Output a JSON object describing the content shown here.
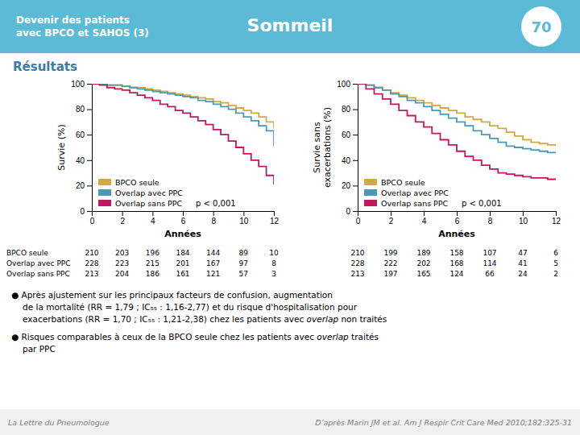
{
  "title": "Sommeil",
  "subtitle": "Devenir des patients\navec BPCO et SAHOS (3)",
  "slide_number": "70",
  "section_title": "Résultats",
  "chart_data": [
    {
      "type": "line",
      "line_style": "step",
      "xlabel": "Années",
      "ylabel": "Survie (%)",
      "xlim": [
        0,
        12
      ],
      "ylim": [
        0,
        100
      ],
      "xticks": [
        0,
        2,
        4,
        6,
        8,
        10,
        12
      ],
      "yticks": [
        0,
        20,
        40,
        60,
        80,
        100
      ],
      "grid": false,
      "legend": "lower left",
      "x": [
        0,
        0.5,
        1,
        1.5,
        2,
        2.5,
        3,
        3.5,
        4,
        4.5,
        5,
        5.5,
        6,
        6.5,
        7,
        7.5,
        8,
        8.5,
        9,
        9.5,
        10,
        10.5,
        11,
        11.5,
        12
      ],
      "series": [
        {
          "name": "BPCO seule",
          "color": "#d4a843",
          "values": [
            100,
            100,
            99,
            99,
            98,
            97,
            97,
            96,
            95,
            94,
            93,
            92,
            91,
            90,
            89,
            88,
            86,
            85,
            83,
            81,
            79,
            77,
            74,
            70,
            65
          ]
        },
        {
          "name": "Overlap avec PPC",
          "color": "#4a9ab5",
          "values": [
            100,
            100,
            99,
            99,
            98,
            97,
            96,
            95,
            94,
            93,
            92,
            91,
            90,
            89,
            87,
            86,
            84,
            82,
            80,
            77,
            74,
            71,
            67,
            63,
            51
          ]
        },
        {
          "name": "Overlap sans PPC",
          "color": "#c0195e",
          "values": [
            100,
            99,
            97,
            96,
            95,
            93,
            91,
            89,
            87,
            84,
            82,
            79,
            77,
            74,
            71,
            68,
            64,
            60,
            55,
            50,
            45,
            40,
            35,
            28,
            21
          ]
        }
      ],
      "annotations": [
        "p < 0,001"
      ],
      "table": {
        "row_labels": [
          "BPCO seule",
          "Overlap avec PPC",
          "Overlap sans PPC"
        ],
        "rows": [
          [
            210,
            203,
            196,
            184,
            144,
            89,
            10
          ],
          [
            228,
            223,
            215,
            201,
            167,
            97,
            8
          ],
          [
            213,
            204,
            186,
            161,
            121,
            57,
            3
          ]
        ]
      }
    },
    {
      "type": "line",
      "line_style": "step",
      "xlabel": "Années",
      "ylabel": "Survie sans\nexacerbations (%)",
      "xlim": [
        0,
        12
      ],
      "ylim": [
        0,
        100
      ],
      "xticks": [
        0,
        2,
        4,
        6,
        8,
        10,
        12
      ],
      "yticks": [
        0,
        20,
        40,
        60,
        80,
        100
      ],
      "grid": false,
      "legend": "lower left",
      "x": [
        0,
        0.5,
        1,
        1.5,
        2,
        2.5,
        3,
        3.5,
        4,
        4.5,
        5,
        5.5,
        6,
        6.5,
        7,
        7.5,
        8,
        8.5,
        9,
        9.5,
        10,
        10.5,
        11,
        11.5,
        12
      ],
      "series": [
        {
          "name": "BPCO seule",
          "color": "#d4a843",
          "values": [
            100,
            99,
            97,
            95,
            93,
            91,
            89,
            87,
            85,
            83,
            81,
            79,
            77,
            74,
            72,
            70,
            67,
            65,
            62,
            59,
            56,
            54,
            53,
            52,
            51
          ]
        },
        {
          "name": "Overlap avec PPC",
          "color": "#4a9ab5",
          "values": [
            100,
            99,
            97,
            95,
            92,
            90,
            87,
            85,
            82,
            79,
            76,
            73,
            70,
            67,
            63,
            60,
            57,
            54,
            51,
            50,
            49,
            48,
            47,
            46,
            46
          ]
        },
        {
          "name": "Overlap sans PPC",
          "color": "#c0195e",
          "values": [
            100,
            96,
            92,
            88,
            84,
            79,
            75,
            70,
            66,
            61,
            56,
            52,
            47,
            43,
            40,
            36,
            33,
            30,
            29,
            28,
            27,
            26,
            26,
            25,
            25
          ]
        }
      ],
      "annotations": [
        "p < 0,001"
      ],
      "table": {
        "rows": [
          [
            210,
            199,
            189,
            158,
            107,
            47,
            6
          ],
          [
            228,
            222,
            202,
            168,
            114,
            41,
            5
          ],
          [
            213,
            197,
            165,
            124,
            66,
            24,
            2
          ]
        ]
      }
    }
  ],
  "bullets": [
    [
      "● Après ajustement sur les principaux facteurs de confusion, augmentation",
      "de la mortalité (RR = 1,79 ; IC₅₅ : 1,16-2,77) et du risque d'hospitalisation pour",
      "exacerbations (RR = 1,70 ; IC₅₅ : 1,21-2,38) chez les patients avec overlap non traités"
    ],
    [
      "● Risques comparables à ceux de la BPCO seule chez les patients avec overlap traités",
      "par PPC"
    ]
  ],
  "footer": [
    "La Lettre du Pneumologue",
    "D’après Marin JM et al. Am J Respir Crit Care Med 2010;182:325-31"
  ]
}
